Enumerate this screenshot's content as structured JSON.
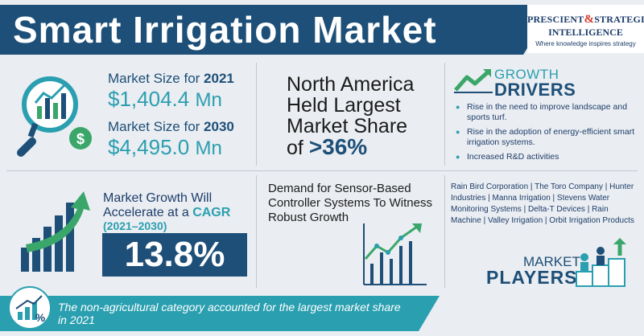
{
  "header": {
    "title": "Smart Irrigation Market"
  },
  "logo": {
    "line1_a": "PRESCIENT",
    "amp": "&",
    "line1_b": "STRATEGIC",
    "line2": "INTELLIGENCE",
    "tagline": "Where knowledge inspires strategy"
  },
  "market_size": {
    "label_2021_prefix": "Market Size for",
    "year_2021": "2021",
    "value_2021": "$1,404.4",
    "unit_2021": "Mn",
    "label_2030_prefix": "Market Size for",
    "year_2030": "2030",
    "value_2030": "$4,495.0",
    "unit_2030": "Mn"
  },
  "north_america": {
    "line1": "North America",
    "line2": "Held Largest",
    "line3": "Market Share",
    "line4_prefix": "of",
    "share": ">36%"
  },
  "growth_drivers": {
    "heading_top": "GROWTH",
    "heading_bottom": "DRIVERS",
    "items": [
      "Rise in the need to improve landscape and sports turf.",
      "Rise in the adoption of energy-efficient smart irrigation systems.",
      "Increased R&D activities"
    ]
  },
  "cagr": {
    "line1": "Market Growth Will",
    "line2_prefix": "Accelerate at a",
    "line2_word": "CAGR",
    "period": "(2021–2030)",
    "value": "13.8%"
  },
  "demand": {
    "text": "Demand for Sensor-Based Controller Systems To Witness Robust Growth"
  },
  "players": {
    "companies": "Rain Bird Corporation | The Toro Company | Hunter Industries | Manna Irrigation | Stevens Water Monitoring Systems | Delta-T Devices | Rain Machine | Valley Irrigation | Orbit Irrigation Products",
    "heading_top": "MARKET",
    "heading_bottom": "PLAYERS"
  },
  "banner": {
    "text": "The non-agricultural category accounted for the largest market share in 2021"
  },
  "colors": {
    "navy": "#1d4f78",
    "teal": "#2a9fb0",
    "green": "#3aa66a",
    "background": "#eaedf1"
  },
  "icons": [
    "magnifier-chart-icon",
    "dollar-coin-icon",
    "growth-chart-arrow-icon",
    "bar-chart-up-arrow-icon",
    "line-chart-icon",
    "people-podium-icon",
    "percent-chart-icon"
  ]
}
